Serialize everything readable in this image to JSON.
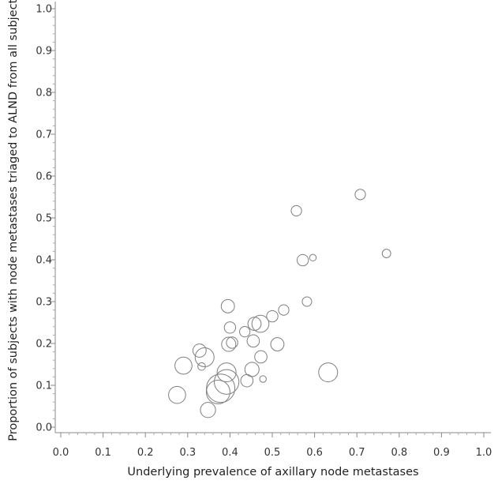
{
  "chart_data": {
    "type": "scatter",
    "title": "",
    "xlabel": "Underlying prevalence of axillary node metastases",
    "ylabel": "Proportion of subjects with node metastases triaged to ALND from all subjects",
    "xlim": [
      0.0,
      1.0
    ],
    "ylim": [
      0.0,
      1.0
    ],
    "x_ticks": [
      "0.0",
      "0.1",
      "0.2",
      "0.3",
      "0.4",
      "0.5",
      "0.6",
      "0.7",
      "0.8",
      "0.9",
      "1.0"
    ],
    "y_ticks": [
      "0.0",
      "0.1",
      "0.2",
      "0.3",
      "0.4",
      "0.5",
      "0.6",
      "0.7",
      "0.8",
      "0.9",
      "1.0"
    ],
    "grid": false,
    "bubble_color": "#7f7f7f",
    "points": [
      {
        "x": 0.275,
        "y": 0.077,
        "size": 3.6
      },
      {
        "x": 0.29,
        "y": 0.147,
        "size": 3.6
      },
      {
        "x": 0.328,
        "y": 0.183,
        "size": 2.8
      },
      {
        "x": 0.333,
        "y": 0.145,
        "size": 1.6
      },
      {
        "x": 0.34,
        "y": 0.167,
        "size": 4.0
      },
      {
        "x": 0.348,
        "y": 0.041,
        "size": 3.2
      },
      {
        "x": 0.372,
        "y": 0.084,
        "size": 5.0
      },
      {
        "x": 0.378,
        "y": 0.093,
        "size": 6.0
      },
      {
        "x": 0.392,
        "y": 0.108,
        "size": 5.2
      },
      {
        "x": 0.392,
        "y": 0.131,
        "size": 4.0
      },
      {
        "x": 0.395,
        "y": 0.289,
        "size": 2.8
      },
      {
        "x": 0.397,
        "y": 0.198,
        "size": 3.0
      },
      {
        "x": 0.4,
        "y": 0.238,
        "size": 2.4
      },
      {
        "x": 0.405,
        "y": 0.202,
        "size": 2.4
      },
      {
        "x": 0.435,
        "y": 0.228,
        "size": 2.2
      },
      {
        "x": 0.44,
        "y": 0.111,
        "size": 2.6
      },
      {
        "x": 0.452,
        "y": 0.138,
        "size": 3.0
      },
      {
        "x": 0.455,
        "y": 0.206,
        "size": 2.6
      },
      {
        "x": 0.458,
        "y": 0.247,
        "size": 2.8
      },
      {
        "x": 0.472,
        "y": 0.247,
        "size": 3.6
      },
      {
        "x": 0.473,
        "y": 0.168,
        "size": 2.6
      },
      {
        "x": 0.478,
        "y": 0.115,
        "size": 1.4
      },
      {
        "x": 0.5,
        "y": 0.265,
        "size": 2.4
      },
      {
        "x": 0.512,
        "y": 0.198,
        "size": 2.8
      },
      {
        "x": 0.527,
        "y": 0.28,
        "size": 2.2
      },
      {
        "x": 0.557,
        "y": 0.517,
        "size": 2.2
      },
      {
        "x": 0.572,
        "y": 0.399,
        "size": 2.4
      },
      {
        "x": 0.582,
        "y": 0.3,
        "size": 2.0
      },
      {
        "x": 0.596,
        "y": 0.405,
        "size": 1.4
      },
      {
        "x": 0.632,
        "y": 0.131,
        "size": 4.0
      },
      {
        "x": 0.708,
        "y": 0.556,
        "size": 2.2
      },
      {
        "x": 0.77,
        "y": 0.415,
        "size": 1.8
      }
    ]
  }
}
